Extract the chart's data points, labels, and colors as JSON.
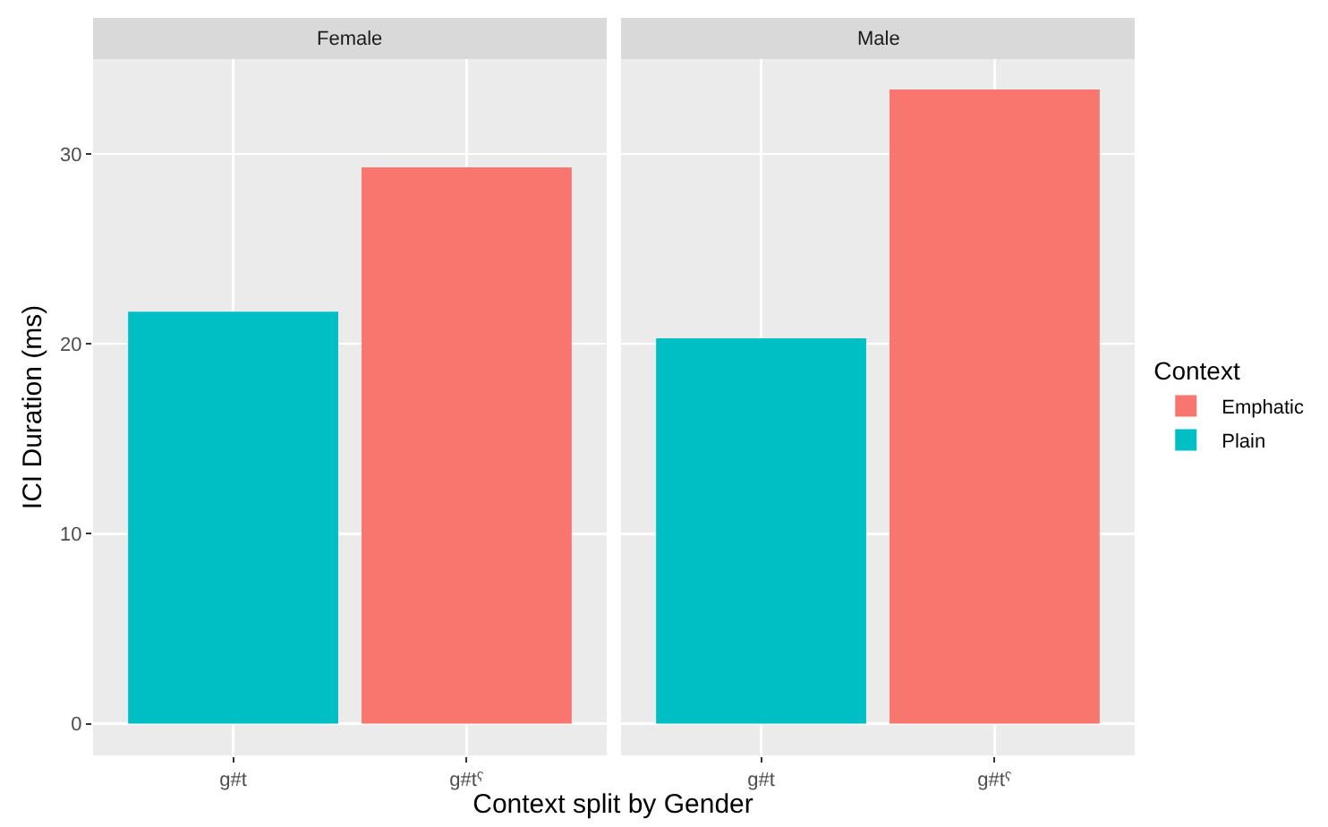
{
  "chart_data": [
    {
      "type": "bar",
      "title": "Female",
      "xlabel": "Context split by Gender",
      "ylabel": "ICI Duration (ms)",
      "categories": [
        "g#t",
        "g#tˤ"
      ],
      "series": [
        {
          "color": "#f8766d",
          "values": [
            null,
            29.3
          ]
        },
        {
          "color": "#00bfc4",
          "values": [
            21.7,
            null
          ]
        }
      ],
      "ylim": [
        -1.67,
        35.0
      ],
      "yticks": [
        0,
        10,
        20,
        30
      ],
      "grid": true,
      "legend": false
    },
    {
      "type": "bar",
      "title": "Male",
      "legend_title": "Context",
      "categories": [
        "g#t",
        "g#tˤ"
      ],
      "series": [
        {
          "name": "Emphatic",
          "color": "#f8766d",
          "values": [
            null,
            33.4
          ]
        },
        {
          "name": "Plain",
          "color": "#00bfc4",
          "values": [
            20.3,
            null
          ]
        }
      ],
      "ylim": [
        -1.67,
        35.0
      ],
      "yticks": [
        0,
        10,
        20,
        30
      ],
      "grid": true,
      "legend": "right",
      "tick_labels": "x"
    }
  ]
}
